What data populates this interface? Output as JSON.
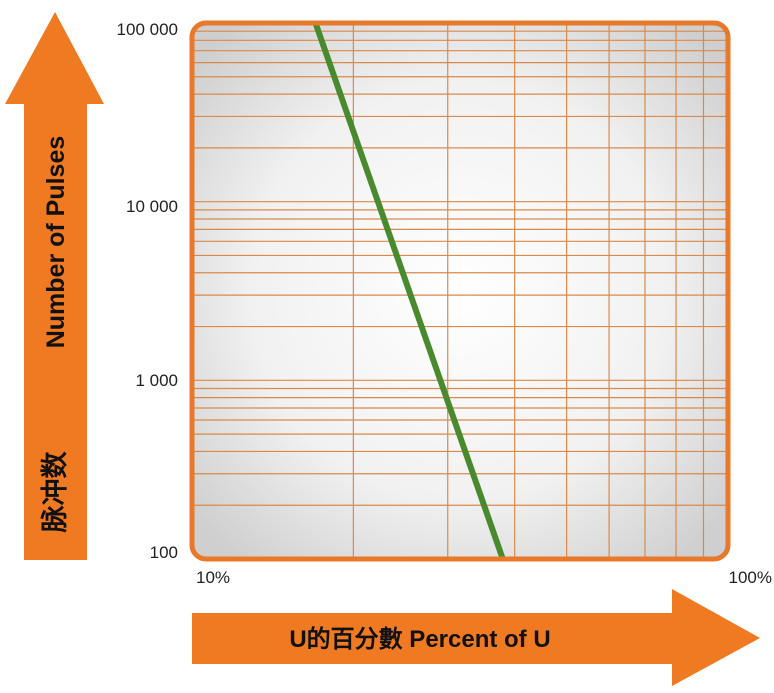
{
  "chart_data": {
    "type": "line",
    "title": "",
    "xlabel": "U的百分數 Percent of U",
    "ylabel_en": "Number of Pulses",
    "ylabel_cn": "脉冲数",
    "xscale": "log",
    "yscale": "log",
    "xlim": [
      10,
      100
    ],
    "ylim": [
      100,
      100000
    ],
    "x_tick_labels": [
      "10%",
      "100%"
    ],
    "y_tick_labels": [
      "100",
      "1 000",
      "10 000",
      "100 000"
    ],
    "grid": true,
    "series": [
      {
        "x": [
          17,
          38
        ],
        "y": [
          100000,
          100
        ]
      }
    ],
    "colors": {
      "frame": "#e8782a",
      "grid": "#d98a4a",
      "arrow": "#f07a22",
      "line": "#4a8a2e"
    }
  }
}
